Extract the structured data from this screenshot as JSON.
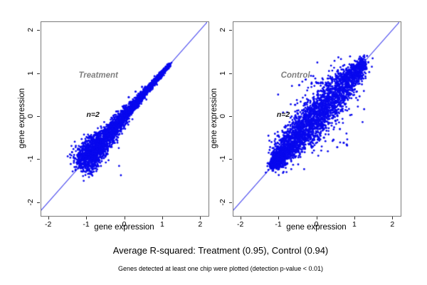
{
  "figure": {
    "background": "#ffffff",
    "captions": {
      "r_squared": "Average R-squared: Treatment (0.95), Control (0.94)",
      "note": "Genes detected at least one chip were plotted (detection p-value < 0.01)"
    },
    "stats": {
      "treatment_r_squared": 0.95,
      "control_r_squared": 0.94,
      "detection_p_value_threshold": "< 0.01"
    }
  },
  "chart_data": {
    "type": "scatter",
    "point_color": "#0808EE",
    "line_color": "#4A4AEE",
    "frame_color": "#7a7a7a",
    "title_color": "#7f7f7f",
    "panels": [
      {
        "label": "Treatment",
        "annotation": "n=2",
        "label_pos": [
          -0.68,
          0.95
        ],
        "annotation_pos": [
          -0.82,
          0.04
        ],
        "xlabel": "gene expression",
        "ylabel": "gene expression",
        "xlim": [
          -2.2,
          2.2
        ],
        "ylim": [
          -2.3,
          2.2
        ],
        "xticks": [
          -2,
          -1,
          0,
          1,
          2
        ],
        "yticks": [
          -2,
          -1,
          0,
          1,
          2
        ],
        "identity_line": true,
        "r_squared": 0.95,
        "cloud": {
          "n": 3000,
          "seed": 42,
          "range": [
            -1.05,
            1.2
          ],
          "density_power": 1.45,
          "profile": "cone",
          "sigma_base": 0.02,
          "sigma_amp": 0.16,
          "sigma_power": 1.8,
          "halo_n": 70,
          "halo_mult": 1.8
        },
        "outliers": [
          [
            0.12,
            0.44
          ],
          [
            0.3,
            0.57
          ],
          [
            0.47,
            0.68
          ]
        ]
      },
      {
        "label": "Control",
        "annotation": "n=2",
        "label_pos": [
          -0.55,
          0.95
        ],
        "annotation_pos": [
          -0.87,
          0.04
        ],
        "xlabel": "gene expression",
        "ylabel": "gene expression",
        "xlim": [
          -2.2,
          2.2
        ],
        "ylim": [
          -2.3,
          2.2
        ],
        "xticks": [
          -2,
          -1,
          0,
          1,
          2
        ],
        "yticks": [
          -2,
          -1,
          0,
          1,
          2
        ],
        "identity_line": true,
        "r_squared": 0.94,
        "cloud": {
          "n": 3300,
          "seed": 7,
          "range": [
            -1.15,
            1.25
          ],
          "density_power": 1.3,
          "profile": "spindle",
          "sigma_base": 0.045,
          "sigma_amp": 0.17,
          "sigma_power": 0.9,
          "halo_n": 300,
          "halo_mult": 2.0
        },
        "outliers": [
          [
            -0.45,
            0.72
          ],
          [
            -0.28,
            0.85
          ],
          [
            -0.08,
            0.93
          ],
          [
            0.12,
            0.78
          ],
          [
            0.2,
            -0.5
          ],
          [
            0.45,
            -0.55
          ],
          [
            0.72,
            -0.62
          ],
          [
            0.55,
            -0.72
          ],
          [
            0.8,
            -0.66
          ],
          [
            0.62,
            -0.3
          ],
          [
            -1.0,
            -0.45
          ]
        ]
      }
    ]
  }
}
